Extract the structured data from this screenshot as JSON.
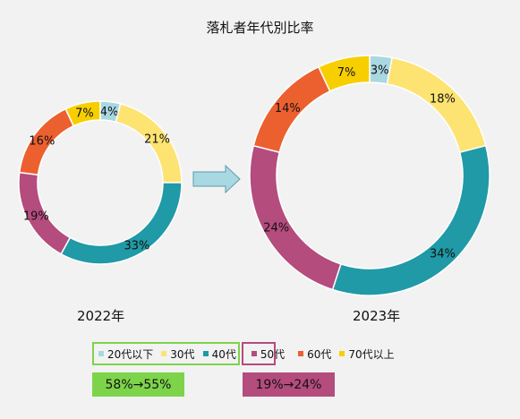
{
  "chart_data": {
    "type": "donut",
    "title": "落札者年代別比率",
    "legend": {
      "placement": "bottom",
      "items": [
        {
          "label": "20代以下",
          "color": "#a8d8e2"
        },
        {
          "label": "30代",
          "color": "#fde372"
        },
        {
          "label": "40代",
          "color": "#1f9aa6"
        },
        {
          "label": "50代",
          "color": "#b44c7d"
        },
        {
          "label": "60代",
          "color": "#ec6030"
        },
        {
          "label": "70代以上",
          "color": "#f7cf00"
        }
      ]
    },
    "charts": [
      {
        "name": "2022年",
        "categories": [
          "20代以下",
          "30代",
          "40代",
          "50代",
          "60代",
          "70代以上"
        ],
        "values": [
          4,
          21,
          33,
          19,
          16,
          7
        ],
        "data_labels": [
          "4%",
          "21%",
          "33%",
          "19%",
          "16%",
          "7%"
        ]
      },
      {
        "name": "2023年",
        "categories": [
          "20代以下",
          "30代",
          "40代",
          "50代",
          "60代",
          "70代以上"
        ],
        "values": [
          3,
          18,
          34,
          24,
          14,
          7
        ],
        "data_labels": [
          "3%",
          "18%",
          "34%",
          "24%",
          "14%",
          "7%"
        ]
      }
    ]
  },
  "annotations": {
    "group_green_text": "58%→55%",
    "group_pink_text": "19%→24%",
    "group_green_color": "#7dd44a",
    "group_pink_color": "#b44c7d",
    "arrow_color": "#a8d8e2"
  }
}
